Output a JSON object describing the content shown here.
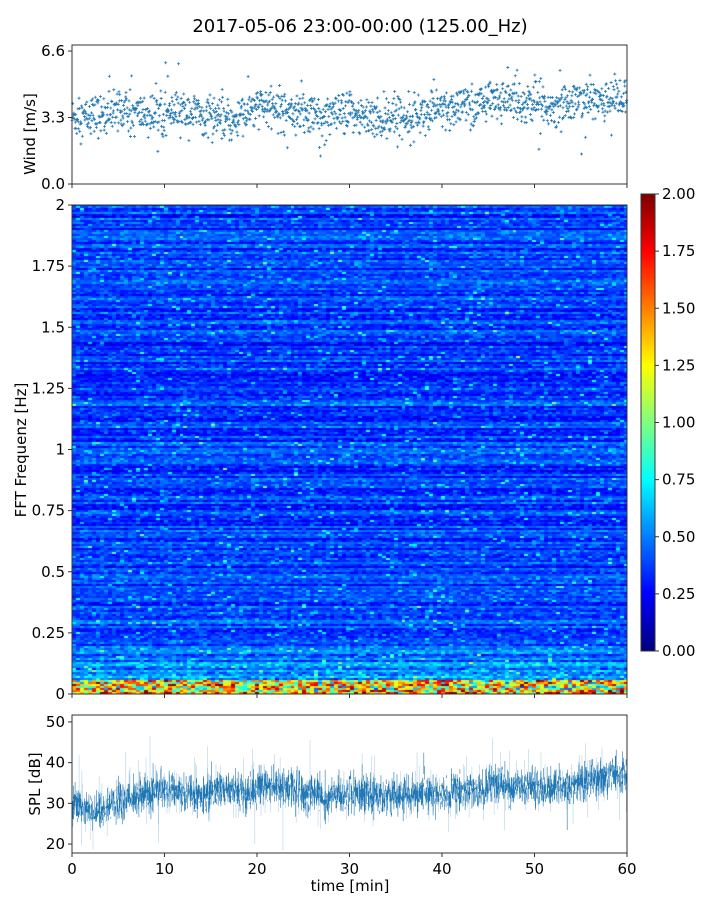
{
  "title": "2017-05-06 23:00-00:00 (125.00_Hz)",
  "chart_data": [
    {
      "type": "scatter",
      "ylabel": "Wind [m/s]",
      "xlim": [
        0,
        60
      ],
      "ylim": [
        0,
        6.9
      ],
      "yticks": [
        "0.0",
        "3.3",
        "6.6"
      ],
      "ytick_values": [
        0,
        3.3,
        6.6
      ],
      "marker": "+",
      "color": "#1f77b4",
      "per_minute_mean": [
        3.3,
        3.3,
        3.4,
        3.4,
        3.5,
        3.6,
        3.5,
        3.5,
        3.4,
        3.5,
        3.4,
        3.5,
        3.6,
        3.5,
        3.4,
        3.3,
        3.1,
        3.1,
        3.4,
        3.7,
        3.8,
        3.8,
        3.7,
        3.8,
        3.6,
        3.5,
        3.4,
        3.3,
        3.4,
        3.4,
        3.6,
        3.4,
        3.2,
        3.2,
        3.3,
        3.3,
        3.4,
        3.5,
        3.6,
        3.7,
        3.6,
        3.7,
        3.9,
        3.9,
        4.0,
        4.1,
        4.2,
        4.3,
        4.1,
        4.0,
        4.0,
        4.0,
        3.9,
        4.0,
        4.1,
        4.2,
        4.1,
        4.2,
        4.3,
        4.2
      ]
    },
    {
      "type": "heatmap",
      "ylabel": "FFT Frequenz [Hz]",
      "xlim": [
        0,
        60
      ],
      "ylim": [
        0,
        2
      ],
      "yticks": [
        "0",
        "0.25",
        "0.5",
        "0.75",
        "1",
        "1.25",
        "1.5",
        "1.75",
        "2"
      ],
      "ytick_values": [
        0,
        0.25,
        0.5,
        0.75,
        1,
        1.25,
        1.5,
        1.75,
        2
      ],
      "colormap": "jet",
      "color_range": [
        0,
        2
      ],
      "colorbar_ticks": [
        "0.00",
        "0.25",
        "0.50",
        "0.75",
        "1.00",
        "1.25",
        "1.50",
        "1.75",
        "2.00"
      ],
      "colorbar_tick_values": [
        0,
        0.25,
        0.5,
        0.75,
        1,
        1.25,
        1.5,
        1.75,
        2
      ]
    },
    {
      "type": "line",
      "ylabel": "SPL [dB]",
      "xlabel": "time [min]",
      "xlim": [
        0,
        60
      ],
      "ylim": [
        17.8,
        51.7
      ],
      "xticks": [
        "0",
        "10",
        "20",
        "30",
        "40",
        "50",
        "60"
      ],
      "xtick_values": [
        0,
        10,
        20,
        30,
        40,
        50,
        60
      ],
      "yticks": [
        "20",
        "30",
        "40",
        "50"
      ],
      "ytick_values": [
        20,
        30,
        40,
        50
      ],
      "color": "#1f77b4",
      "per_minute_mean": [
        30,
        29,
        28,
        29,
        30,
        31,
        32,
        32,
        32,
        33,
        33,
        33,
        33,
        32,
        32,
        33,
        33,
        33,
        32,
        33,
        34,
        34,
        34,
        34,
        33,
        32,
        32,
        31,
        32,
        32,
        33,
        33,
        32,
        32,
        32,
        32,
        32,
        32,
        33,
        32,
        32,
        33,
        33,
        33,
        33,
        35,
        35,
        34,
        34,
        34,
        34,
        34,
        34,
        34,
        35,
        35,
        36,
        36,
        37,
        37
      ]
    }
  ]
}
